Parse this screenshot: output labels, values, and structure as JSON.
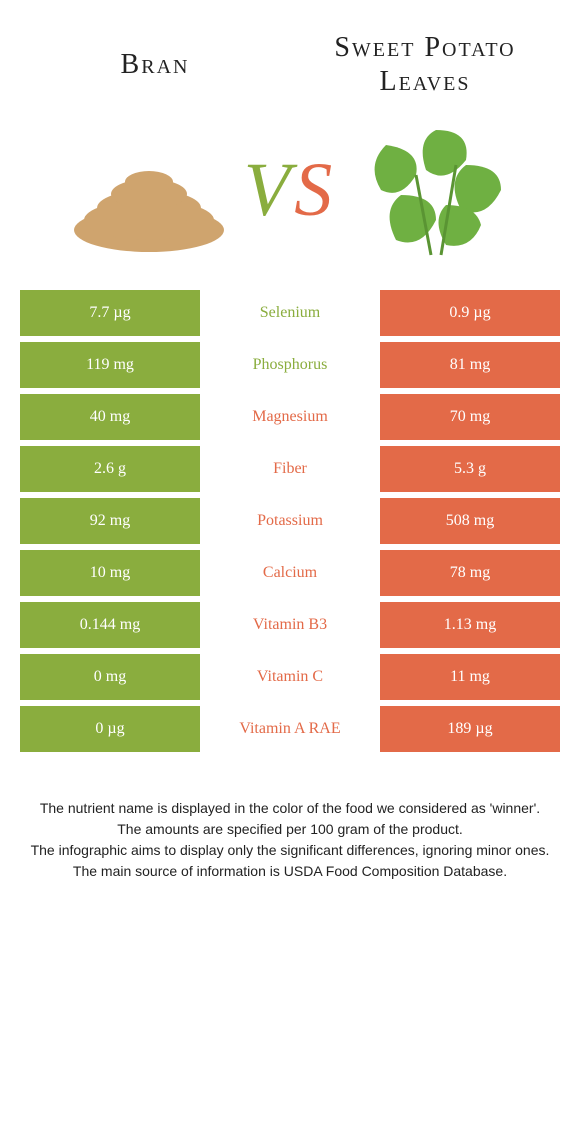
{
  "colors": {
    "left": "#8aad3e",
    "right": "#e36a48",
    "background": "#ffffff",
    "text": "#222222"
  },
  "foods": {
    "left": {
      "name": "Bran"
    },
    "right": {
      "name": "Sweet Potato Leaves"
    }
  },
  "vs": {
    "v": "V",
    "s": "S"
  },
  "rows": [
    {
      "left": "7.7 µg",
      "label": "Selenium",
      "right": "0.9 µg",
      "winner": "left"
    },
    {
      "left": "119 mg",
      "label": "Phosphorus",
      "right": "81 mg",
      "winner": "left"
    },
    {
      "left": "40 mg",
      "label": "Magnesium",
      "right": "70 mg",
      "winner": "right"
    },
    {
      "left": "2.6 g",
      "label": "Fiber",
      "right": "5.3 g",
      "winner": "right"
    },
    {
      "left": "92 mg",
      "label": "Potassium",
      "right": "508 mg",
      "winner": "right"
    },
    {
      "left": "10 mg",
      "label": "Calcium",
      "right": "78 mg",
      "winner": "right"
    },
    {
      "left": "0.144 mg",
      "label": "Vitamin B3",
      "right": "1.13 mg",
      "winner": "right"
    },
    {
      "left": "0 mg",
      "label": "Vitamin C",
      "right": "11 mg",
      "winner": "right"
    },
    {
      "left": "0 µg",
      "label": "Vitamin A RAE",
      "right": "189 µg",
      "winner": "right"
    }
  ],
  "footer": {
    "l1": "The nutrient name is displayed in the color of the food we considered as 'winner'.",
    "l2": "The amounts are specified per 100 gram of the product.",
    "l3": "The infographic aims to display only the significant differences, ignoring minor ones.",
    "l4": "The main source of information is USDA Food Composition Database."
  }
}
